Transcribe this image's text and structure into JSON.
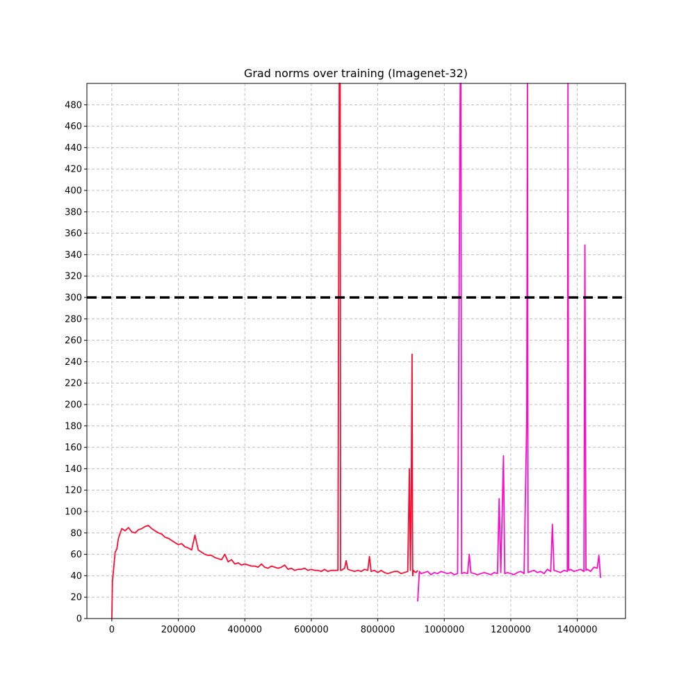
{
  "chart_data": {
    "type": "line",
    "title": "Grad norms over training (Imagenet-32)",
    "xlabel": "",
    "ylabel": "",
    "xlim": [
      -75000,
      1545000
    ],
    "ylim": [
      0,
      500
    ],
    "xticks": [
      0,
      200000,
      400000,
      600000,
      800000,
      1000000,
      1200000,
      1400000
    ],
    "xtick_labels": [
      "0",
      "200000",
      "400000",
      "600000",
      "800000",
      "1000000",
      "1200000",
      "1400000"
    ],
    "yticks": [
      0,
      20,
      40,
      60,
      80,
      100,
      120,
      140,
      160,
      180,
      200,
      220,
      240,
      260,
      280,
      300,
      320,
      340,
      360,
      380,
      400,
      420,
      440,
      460,
      480
    ],
    "ytick_labels": [
      "0",
      "20",
      "40",
      "60",
      "80",
      "100",
      "120",
      "140",
      "160",
      "180",
      "200",
      "220",
      "240",
      "260",
      "280",
      "300",
      "320",
      "340",
      "360",
      "380",
      "400",
      "420",
      "440",
      "460",
      "480"
    ],
    "grid": true,
    "legend": "none",
    "reference_line": {
      "y": 300,
      "style": "dashed",
      "color": "#000000"
    },
    "series": [
      {
        "color": "#ff0a2f",
        "x": [
          0,
          2000,
          5000,
          10000,
          15000,
          20000,
          30000,
          40000,
          50000,
          60000,
          70000,
          80000,
          90000,
          100000,
          110000,
          120000,
          130000,
          140000,
          150000,
          160000,
          170000,
          180000,
          190000,
          200000,
          210000,
          220000,
          230000,
          240000,
          250000,
          260000,
          270000,
          280000,
          290000,
          300000,
          310000,
          320000,
          330000,
          340000,
          350000,
          360000,
          370000,
          380000,
          390000,
          400000,
          410000,
          420000,
          430000,
          440000,
          450000,
          460000,
          470000,
          480000,
          490000,
          500000,
          510000,
          520000,
          530000,
          540000,
          550000,
          560000,
          570000,
          580000,
          590000,
          600000,
          610000,
          620000,
          630000,
          640000,
          650000,
          660000,
          670000,
          680000,
          684000,
          687000,
          688000,
          690000,
          700000,
          705000,
          710000,
          720000,
          730000,
          740000,
          750000,
          760000,
          770000,
          775000,
          780000,
          790000,
          800000,
          810000,
          820000,
          830000,
          840000,
          850000,
          860000,
          870000,
          880000,
          890000,
          895000,
          898000,
          900000,
          903000,
          905000,
          907000,
          910000,
          915000,
          920000
        ],
        "y": [
          0,
          35,
          45,
          62,
          65,
          75,
          84,
          82,
          85,
          81,
          80,
          83,
          84,
          86,
          87,
          84,
          82,
          80,
          79,
          76,
          75,
          73,
          71,
          69,
          70,
          67,
          66,
          64,
          78,
          64,
          62,
          60,
          59,
          59,
          57,
          56,
          55,
          60,
          53,
          55,
          51,
          52,
          50,
          51,
          50,
          49,
          49,
          48,
          51,
          48,
          47,
          49,
          48,
          47,
          48,
          50,
          46,
          47,
          45,
          46,
          46,
          47,
          45,
          46,
          45,
          45,
          44,
          46,
          44,
          45,
          45,
          45,
          500,
          500,
          45,
          45,
          47,
          54,
          46,
          45,
          44,
          45,
          44,
          46,
          45,
          58,
          44,
          45,
          43,
          45,
          43,
          42,
          43,
          44,
          44,
          42,
          43,
          44,
          140,
          45,
          90,
          247,
          40,
          45,
          44,
          43,
          45
        ]
      },
      {
        "color": "#ff0ac8",
        "x": [
          920000,
          925000,
          930000,
          940000,
          950000,
          960000,
          970000,
          980000,
          990000,
          1000000,
          1010000,
          1020000,
          1030000,
          1040000,
          1048000,
          1050000,
          1052000,
          1060000,
          1070000,
          1075000,
          1080000,
          1090000,
          1100000,
          1110000,
          1120000,
          1130000,
          1140000,
          1150000,
          1160000,
          1165000,
          1170000,
          1178000,
          1182000,
          1190000,
          1200000,
          1210000,
          1220000,
          1230000,
          1240000,
          1248000,
          1250000,
          1252000,
          1260000,
          1270000,
          1280000,
          1290000,
          1300000,
          1310000,
          1320000,
          1325000,
          1330000,
          1340000,
          1350000,
          1360000,
          1370000,
          1372000,
          1374000,
          1380000,
          1390000,
          1400000,
          1410000,
          1420000,
          1423000,
          1426000,
          1430000,
          1440000,
          1450000,
          1460000,
          1465000,
          1470000
        ],
        "y": [
          16,
          44,
          42,
          43,
          44,
          41,
          43,
          42,
          44,
          43,
          42,
          43,
          41,
          42,
          500,
          500,
          42,
          43,
          42,
          60,
          43,
          42,
          41,
          42,
          43,
          42,
          41,
          43,
          42,
          112,
          43,
          152,
          42,
          43,
          42,
          41,
          43,
          44,
          42,
          186,
          500,
          43,
          44,
          45,
          43,
          44,
          42,
          46,
          44,
          88,
          45,
          44,
          43,
          45,
          44,
          500,
          45,
          46,
          44,
          45,
          46,
          44,
          349,
          45,
          46,
          44,
          48,
          47,
          59,
          38
        ]
      }
    ]
  }
}
